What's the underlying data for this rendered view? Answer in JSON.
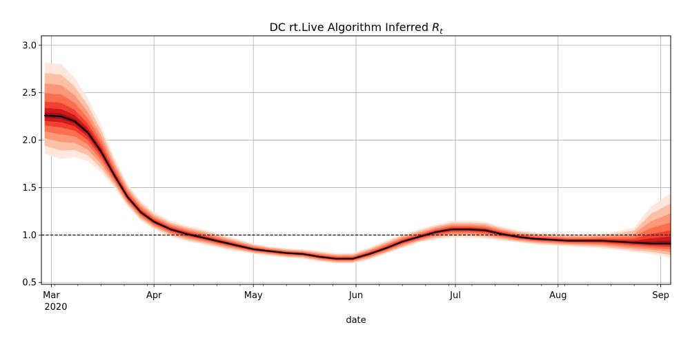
{
  "chart_data": {
    "type": "line",
    "title": "DC rt.Live Algorithm Inferred ",
    "title_symbol": "R",
    "title_subscript": "t",
    "xlabel": "date",
    "ylabel": "",
    "x_ticks": [
      {
        "date": "2020-03-01",
        "label": "Mar",
        "sublabel": "2020"
      },
      {
        "date": "2020-04-01",
        "label": "Apr",
        "sublabel": ""
      },
      {
        "date": "2020-05-01",
        "label": "May",
        "sublabel": ""
      },
      {
        "date": "2020-06-01",
        "label": "Jun",
        "sublabel": ""
      },
      {
        "date": "2020-07-01",
        "label": "Jul",
        "sublabel": ""
      },
      {
        "date": "2020-08-01",
        "label": "Aug",
        "sublabel": ""
      },
      {
        "date": "2020-09-01",
        "label": "Sep",
        "sublabel": ""
      }
    ],
    "y_ticks": [
      "0.5",
      "1.0",
      "1.5",
      "2.0",
      "2.5",
      "3.0"
    ],
    "xlim": [
      "2020-02-27",
      "2020-09-04"
    ],
    "ylim": [
      0.48,
      3.1
    ],
    "grid": true,
    "reference_line": {
      "y": 1.0,
      "style": "dashed",
      "color": "#000000"
    },
    "colors": {
      "median_line": "#000000",
      "band_outer": "#fee5d9",
      "band_mid": "#fb6a4a",
      "band_inner": "#a50f15"
    },
    "series": [
      {
        "x": [
          "2020-02-28",
          "2020-03-04",
          "2020-03-08",
          "2020-03-12",
          "2020-03-16",
          "2020-03-20",
          "2020-03-24",
          "2020-03-28",
          "2020-04-01",
          "2020-04-06",
          "2020-04-11",
          "2020-04-16",
          "2020-04-21",
          "2020-04-26",
          "2020-05-01",
          "2020-05-06",
          "2020-05-11",
          "2020-05-16",
          "2020-05-21",
          "2020-05-26",
          "2020-05-31",
          "2020-06-05",
          "2020-06-10",
          "2020-06-15",
          "2020-06-20",
          "2020-06-25",
          "2020-06-30",
          "2020-07-05",
          "2020-07-10",
          "2020-07-15",
          "2020-07-20",
          "2020-07-25",
          "2020-07-30",
          "2020-08-04",
          "2020-08-09",
          "2020-08-14",
          "2020-08-19",
          "2020-08-24",
          "2020-08-29",
          "2020-09-04"
        ],
        "median": [
          2.26,
          2.25,
          2.2,
          2.08,
          1.88,
          1.63,
          1.4,
          1.24,
          1.14,
          1.06,
          1.01,
          0.97,
          0.93,
          0.89,
          0.85,
          0.83,
          0.81,
          0.8,
          0.77,
          0.75,
          0.75,
          0.8,
          0.86,
          0.93,
          0.98,
          1.03,
          1.06,
          1.06,
          1.05,
          1.01,
          0.98,
          0.96,
          0.95,
          0.94,
          0.94,
          0.94,
          0.93,
          0.92,
          0.91,
          0.91
        ],
        "lower": [
          1.86,
          1.8,
          1.82,
          1.78,
          1.66,
          1.5,
          1.3,
          1.15,
          1.06,
          0.98,
          0.93,
          0.9,
          0.86,
          0.83,
          0.8,
          0.78,
          0.76,
          0.75,
          0.72,
          0.7,
          0.7,
          0.74,
          0.8,
          0.86,
          0.92,
          0.95,
          0.97,
          0.97,
          0.96,
          0.94,
          0.92,
          0.9,
          0.89,
          0.88,
          0.87,
          0.86,
          0.84,
          0.82,
          0.8,
          0.76
        ],
        "upper": [
          2.82,
          2.8,
          2.66,
          2.44,
          2.16,
          1.82,
          1.54,
          1.36,
          1.24,
          1.15,
          1.1,
          1.06,
          1.01,
          0.96,
          0.91,
          0.88,
          0.86,
          0.85,
          0.83,
          0.81,
          0.81,
          0.87,
          0.94,
          1.01,
          1.06,
          1.11,
          1.15,
          1.15,
          1.14,
          1.09,
          1.05,
          1.03,
          1.02,
          1.01,
          1.01,
          1.02,
          1.04,
          1.08,
          1.3,
          1.44
        ]
      }
    ]
  }
}
